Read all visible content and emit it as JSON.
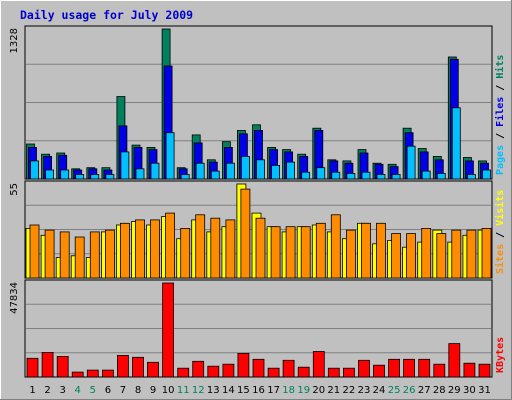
{
  "chart_data": {
    "type": "bar",
    "title": "Daily usage for July 2009",
    "categories": [
      "1",
      "2",
      "3",
      "4",
      "5",
      "6",
      "7",
      "8",
      "9",
      "10",
      "11",
      "12",
      "13",
      "14",
      "15",
      "16",
      "17",
      "18",
      "19",
      "20",
      "21",
      "22",
      "23",
      "24",
      "25",
      "26",
      "27",
      "28",
      "29",
      "30",
      "31"
    ],
    "weekend_days": [
      "4",
      "5",
      "11",
      "12",
      "18",
      "19",
      "25",
      "26"
    ],
    "panels": [
      {
        "id": "top",
        "axis_max_label": "1328",
        "ylim": [
          0,
          1328
        ],
        "legend": [
          "Pages",
          "Files",
          "Hits"
        ],
        "series": [
          {
            "name": "Hits",
            "color": "#00805c",
            "values": [
              310,
              220,
              230,
              90,
              100,
              100,
              730,
              300,
              280,
              1328,
              100,
              390,
              170,
              330,
              430,
              480,
              280,
              260,
              220,
              450,
              170,
              160,
              260,
              140,
              130,
              450,
              270,
              200,
              1080,
              190,
              160
            ]
          },
          {
            "name": "Files",
            "color": "#0000e6",
            "values": [
              280,
              200,
              210,
              80,
              90,
              80,
              470,
              280,
              260,
              1000,
              90,
              320,
              150,
              280,
              400,
              430,
              260,
              240,
              200,
              430,
              160,
              140,
              230,
              130,
              110,
              410,
              240,
              170,
              1060,
              160,
              140
            ]
          },
          {
            "name": "Pages",
            "color": "#00c0ff",
            "values": [
              160,
              80,
              80,
              40,
              40,
              40,
              240,
              90,
              140,
              410,
              40,
              140,
              70,
              140,
              200,
              170,
              120,
              150,
              60,
              100,
              60,
              50,
              60,
              40,
              40,
              290,
              70,
              50,
              630,
              40,
              80
            ]
          }
        ]
      },
      {
        "id": "middle",
        "axis_max_label": "55",
        "ylim": [
          0,
          55
        ],
        "legend": [
          "Sites",
          "Visits"
        ],
        "series": [
          {
            "name": "Visits",
            "color": "#ffff00",
            "values": [
              29,
              25,
              12,
              13,
              12,
              27,
              31,
              33,
              31,
              36,
              23,
              34,
              27,
              30,
              55,
              38,
              30,
              27,
              30,
              31,
              27,
              23,
              32,
              20,
              22,
              18,
              21,
              28,
              21,
              25,
              28
            ]
          },
          {
            "name": "Sites",
            "color": "#ff8c00",
            "values": [
              31,
              28,
              27,
              24,
              27,
              28,
              32,
              34,
              34,
              38,
              29,
              37,
              35,
              34,
              52,
              35,
              30,
              30,
              30,
              32,
              37,
              28,
              32,
              32,
              26,
              26,
              29,
              26,
              28,
              28,
              29
            ]
          }
        ]
      },
      {
        "id": "bottom",
        "axis_max_label": "47834",
        "ylim": [
          0,
          47834
        ],
        "legend": [
          "KBytes"
        ],
        "series": [
          {
            "name": "KBytes",
            "color": "#ff0000",
            "values": [
              9500,
              12500,
              10500,
              2500,
              3500,
              3500,
              11000,
              10000,
              7500,
              47834,
              4500,
              8000,
              5500,
              6500,
              12000,
              9000,
              4500,
              8500,
              5000,
              13000,
              4500,
              4500,
              8500,
              6000,
              9000,
              9000,
              9000,
              6500,
              17000,
              7000,
              6500
            ]
          }
        ]
      }
    ]
  }
}
